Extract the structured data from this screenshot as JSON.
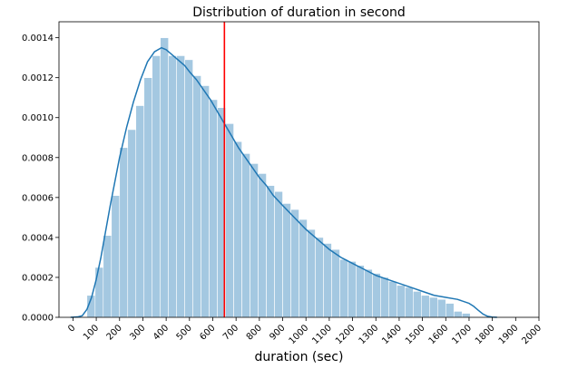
{
  "chart_data": {
    "type": "bar",
    "title": "Distribution of duration in second",
    "xlabel": "duration (sec)",
    "ylabel": "",
    "xlim": [
      -60,
      2000
    ],
    "ylim": [
      0,
      0.00148
    ],
    "xticks": [
      0,
      100,
      200,
      300,
      400,
      500,
      600,
      700,
      800,
      900,
      1000,
      1100,
      1200,
      1300,
      1400,
      1500,
      1600,
      1700,
      1800,
      1900,
      2000
    ],
    "xtick_labels": [
      "0",
      "100",
      "200",
      "300",
      "400",
      "500",
      "600",
      "700",
      "800",
      "900",
      "1000",
      "1100",
      "1200",
      "1300",
      "1400",
      "1500",
      "1600",
      "1700",
      "1800",
      "1900",
      "2000"
    ],
    "yticks": [
      0,
      0.0002,
      0.0004,
      0.0006,
      0.0008,
      0.001,
      0.0012,
      0.0014
    ],
    "ytick_labels": [
      "0.0000",
      "0.0002",
      "0.0004",
      "0.0006",
      "0.0008",
      "0.0010",
      "0.0012",
      "0.0014"
    ],
    "histogram": {
      "bin_width": 35,
      "bin_start": 60,
      "values": [
        0.00011,
        0.00025,
        0.00041,
        0.00061,
        0.00085,
        0.00094,
        0.00106,
        0.0012,
        0.00131,
        0.0014,
        0.00131,
        0.00131,
        0.00129,
        0.00121,
        0.00116,
        0.00109,
        0.00105,
        0.00097,
        0.00088,
        0.00082,
        0.00077,
        0.00072,
        0.00066,
        0.00063,
        0.00057,
        0.00054,
        0.00049,
        0.00044,
        0.0004,
        0.00037,
        0.00034,
        0.00029,
        0.00028,
        0.00026,
        0.00024,
        0.00022,
        0.0002,
        0.00018,
        0.00016,
        0.00015,
        0.00013,
        0.00011,
        0.0001,
        9e-05,
        7e-05,
        3e-05,
        2e-05,
        3e-06
      ],
      "color": "#a4c8e1"
    },
    "kde": {
      "x": [
        -10,
        20,
        40,
        60,
        80,
        100,
        120,
        140,
        160,
        180,
        200,
        230,
        260,
        290,
        320,
        350,
        380,
        400,
        420,
        450,
        480,
        500,
        530,
        560,
        590,
        620,
        650,
        680,
        710,
        740,
        770,
        800,
        830,
        860,
        900,
        950,
        1000,
        1050,
        1100,
        1150,
        1200,
        1250,
        1300,
        1350,
        1400,
        1450,
        1500,
        1550,
        1600,
        1650,
        1700,
        1720,
        1740,
        1760,
        1780,
        1800,
        1820
      ],
      "y": [
        0,
        2e-06,
        8e-06,
        4e-05,
        0.0001,
        0.00019,
        0.0003,
        0.00043,
        0.00056,
        0.00068,
        0.0008,
        0.00095,
        0.00108,
        0.00119,
        0.00128,
        0.00133,
        0.00135,
        0.00134,
        0.00132,
        0.00129,
        0.00126,
        0.00123,
        0.00119,
        0.00114,
        0.00109,
        0.00103,
        0.00097,
        0.00091,
        0.00085,
        0.0008,
        0.00075,
        0.0007,
        0.00066,
        0.00061,
        0.00056,
        0.0005,
        0.00044,
        0.00039,
        0.00034,
        0.0003,
        0.00027,
        0.00024,
        0.00021,
        0.00019,
        0.00017,
        0.00015,
        0.00013,
        0.00011,
        0.0001,
        9e-05,
        7e-05,
        5.5e-05,
        3.5e-05,
        1.6e-05,
        5e-06,
        1e-06,
        0
      ],
      "color": "#1f77b4"
    },
    "vline": {
      "x": 650,
      "color": "#ff0000"
    },
    "grid": false,
    "legend": "none"
  }
}
